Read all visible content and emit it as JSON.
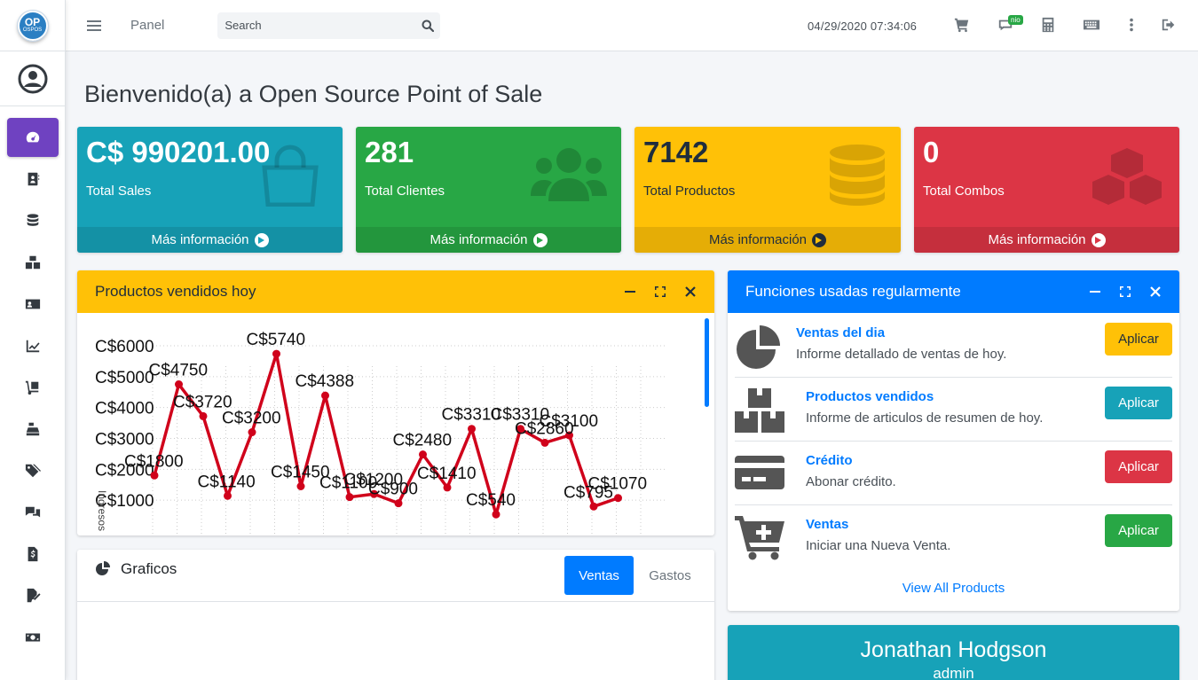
{
  "topbar": {
    "panel_label": "Panel",
    "search_placeholder": "Search",
    "datetime": "04/29/2020 07:34:06",
    "messages_badge": "nio"
  },
  "logo": {
    "big": "OP",
    "small": "OSPOS"
  },
  "page_title": "Bienvenido(a) a Open Source Point of Sale",
  "more_info": "Más información",
  "stats": [
    {
      "value": "C$ 990201.00",
      "label": "Total Sales",
      "color": "#17a2b8"
    },
    {
      "value": "281",
      "label": "Total Clientes",
      "color": "#28a745"
    },
    {
      "value": "7142",
      "label": "Total Productos",
      "color": "#ffc107"
    },
    {
      "value": "0",
      "label": "Total Combos",
      "color": "#dc3545"
    }
  ],
  "sales_card": {
    "title": "Productos vendidos hoy"
  },
  "chart_data": {
    "type": "line",
    "ylabel": "Ingresos",
    "y_ticks": [
      "C$6000",
      "C$5000",
      "C$4000",
      "C$3000",
      "C$2000",
      "C$1000"
    ],
    "values": [
      1800,
      4750,
      3720,
      1140,
      3200,
      5740,
      1450,
      4388,
      1100,
      1200,
      900,
      2480,
      1410,
      3310,
      540,
      3310,
      2860,
      3100,
      795,
      1070
    ],
    "labels": [
      "C$1800",
      "C$4750",
      "C$3720",
      "C$1140",
      "C$3200",
      "C$5740",
      "C$1450",
      "C$4388",
      "C$1100",
      "C$1200",
      "C$900",
      "C$2480",
      "C$1410",
      "C$3310",
      "C$540",
      "C$3310",
      "C$2860",
      "C$3100",
      "C$795",
      "C$1070"
    ],
    "color": "#d0021b"
  },
  "charts_card": {
    "title": "Graficos",
    "tabs": [
      "Ventas",
      "Gastos"
    ]
  },
  "functions": {
    "title": "Funciones usadas regularmente",
    "items": [
      {
        "title": "Ventas del dia",
        "desc": "Informe detallado de ventas de hoy.",
        "button": "Aplicar",
        "btn_color": "#ffc107",
        "icon": "pie-chart-icon"
      },
      {
        "title": "Productos vendidos",
        "desc": "Informe de articulos de resumen de hoy.",
        "button": "Aplicar",
        "btn_color": "#17a2b8",
        "icon": "boxes-icon"
      },
      {
        "title": "Crédito",
        "desc": "Abonar crédito.",
        "button": "Aplicar",
        "btn_color": "#dc3545",
        "icon": "credit-card-icon"
      },
      {
        "title": "Ventas",
        "desc": "Iniciar una Nueva Venta.",
        "button": "Aplicar",
        "btn_color": "#28a745",
        "icon": "cart-plus-icon"
      }
    ],
    "view_all": "View All Products"
  },
  "profile": {
    "name": "Jonathan Hodgson",
    "role": "admin"
  }
}
